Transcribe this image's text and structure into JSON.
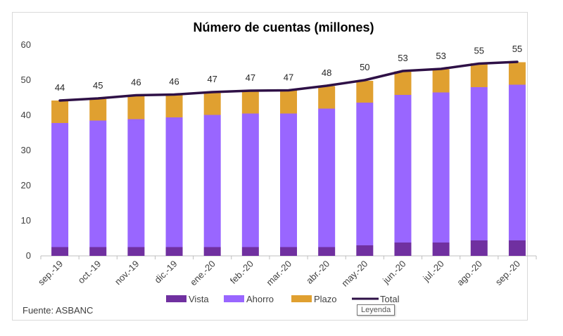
{
  "chart_data": {
    "type": "bar",
    "title": "Número de cuentas (millones)",
    "categories": [
      "sep.-19",
      "oct.-19",
      "nov.-19",
      "dic.-19",
      "ene.-20",
      "feb.-20",
      "mar.-20",
      "abr.-20",
      "may.-20",
      "jun.-20",
      "jul.-20",
      "ago.-20",
      "sep.-20"
    ],
    "series": [
      {
        "name": "Vista",
        "type": "stacked-bar",
        "color": "#7030a0",
        "values": [
          2.5,
          2.5,
          2.5,
          2.5,
          2.5,
          2.5,
          2.5,
          2.5,
          3.0,
          3.8,
          3.8,
          4.4,
          4.4
        ]
      },
      {
        "name": "Ahorro",
        "type": "stacked-bar",
        "color": "#9966ff",
        "values": [
          35.3,
          36.0,
          36.4,
          36.9,
          37.6,
          38.0,
          38.0,
          39.4,
          40.6,
          42.0,
          42.7,
          43.6,
          44.3
        ]
      },
      {
        "name": "Plazo",
        "type": "stacked-bar",
        "color": "#e0a030",
        "values": [
          6.4,
          6.1,
          6.5,
          6.3,
          6.3,
          6.4,
          6.6,
          6.4,
          6.2,
          6.7,
          6.6,
          6.8,
          6.4
        ]
      },
      {
        "name": "Total",
        "type": "line",
        "color": "#2e1046",
        "values": [
          44.2,
          44.8,
          45.7,
          45.9,
          46.6,
          47.0,
          47.1,
          48.4,
          50.0,
          52.6,
          53.2,
          54.7,
          55.2
        ]
      }
    ],
    "data_labels": [
      "44",
      "45",
      "46",
      "46",
      "47",
      "47",
      "47",
      "48",
      "50",
      "53",
      "53",
      "55",
      "55"
    ],
    "yticks": [
      "0",
      "10",
      "20",
      "30",
      "40",
      "50",
      "60"
    ],
    "ylim": [
      0,
      60
    ],
    "xlabel": "",
    "ylabel": "",
    "grid": false,
    "legend_position": "bottom"
  },
  "source_note": "Fuente: ASBANC",
  "tooltip_text": "Leyenda"
}
